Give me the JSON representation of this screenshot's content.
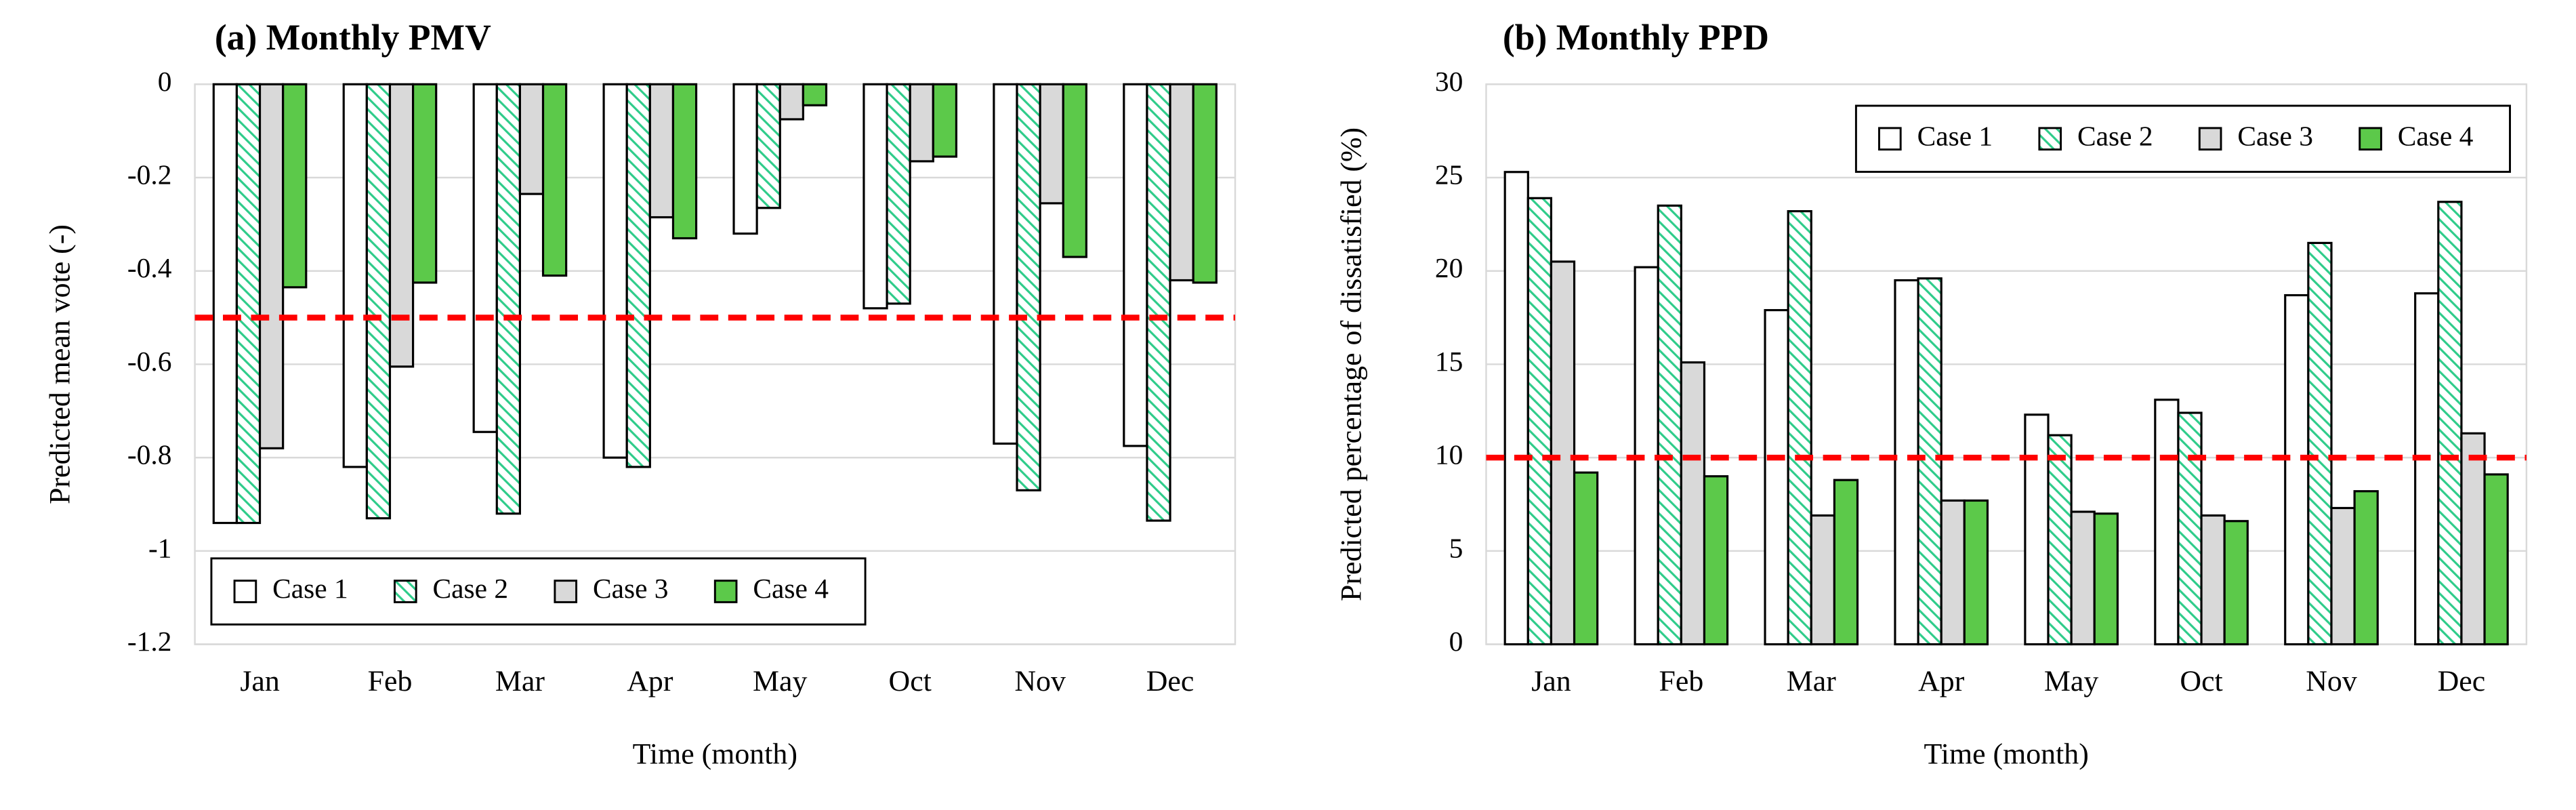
{
  "chart_data": [
    {
      "type": "bar",
      "title": "(a) Monthly PMV",
      "xlabel": "Time (month)",
      "ylabel": "Predicted mean vote (-)",
      "categories": [
        "Jan",
        "Feb",
        "Mar",
        "Apr",
        "May",
        "Oct",
        "Nov",
        "Dec"
      ],
      "series": [
        {
          "name": "Case 1",
          "color": "#ffffff",
          "values": [
            -0.94,
            -0.82,
            -0.745,
            -0.8,
            -0.32,
            -0.48,
            -0.77,
            -0.775
          ]
        },
        {
          "name": "Case 2",
          "color": "#2ecc8a",
          "hatch": true,
          "values": [
            -0.94,
            -0.93,
            -0.92,
            -0.82,
            -0.265,
            -0.47,
            -0.87,
            -0.935
          ]
        },
        {
          "name": "Case 3",
          "color": "#d9d9d9",
          "values": [
            -0.78,
            -0.605,
            -0.235,
            -0.285,
            -0.075,
            -0.165,
            -0.255,
            -0.42
          ]
        },
        {
          "name": "Case 4",
          "color": "#5cc94a",
          "values": [
            -0.435,
            -0.425,
            -0.41,
            -0.33,
            -0.045,
            -0.155,
            -0.37,
            -0.425
          ]
        }
      ],
      "ylim": [
        -1.2,
        0
      ],
      "yticks": [
        -1.2,
        -1,
        -0.8,
        -0.6,
        -0.4,
        -0.2,
        0
      ],
      "grid": true,
      "reference_line": -0.5,
      "reference_color": "#ff0000",
      "legend": "lower left"
    },
    {
      "type": "bar",
      "title": "(b) Monthly PPD",
      "xlabel": "Time (month)",
      "ylabel": "Predicted percentage of dissatisfied (%)",
      "categories": [
        "Jan",
        "Feb",
        "Mar",
        "Apr",
        "May",
        "Oct",
        "Nov",
        "Dec"
      ],
      "series": [
        {
          "name": "Case 1",
          "color": "#ffffff",
          "values": [
            25.3,
            20.2,
            17.9,
            19.5,
            12.3,
            13.1,
            18.7,
            18.8
          ]
        },
        {
          "name": "Case 2",
          "color": "#2ecc8a",
          "hatch": true,
          "values": [
            23.9,
            23.5,
            23.2,
            19.6,
            11.2,
            12.4,
            21.5,
            23.7
          ]
        },
        {
          "name": "Case 3",
          "color": "#d9d9d9",
          "values": [
            20.5,
            15.1,
            6.9,
            7.7,
            7.1,
            6.9,
            7.3,
            11.3
          ]
        },
        {
          "name": "Case 4",
          "color": "#5cc94a",
          "values": [
            9.2,
            9.0,
            8.8,
            7.7,
            7.0,
            6.6,
            8.2,
            9.1
          ]
        }
      ],
      "ylim": [
        0,
        30
      ],
      "yticks": [
        0,
        5,
        10,
        15,
        20,
        25,
        30
      ],
      "grid": true,
      "reference_line": 10,
      "reference_color": "#ff0000",
      "legend": "upper right"
    }
  ]
}
